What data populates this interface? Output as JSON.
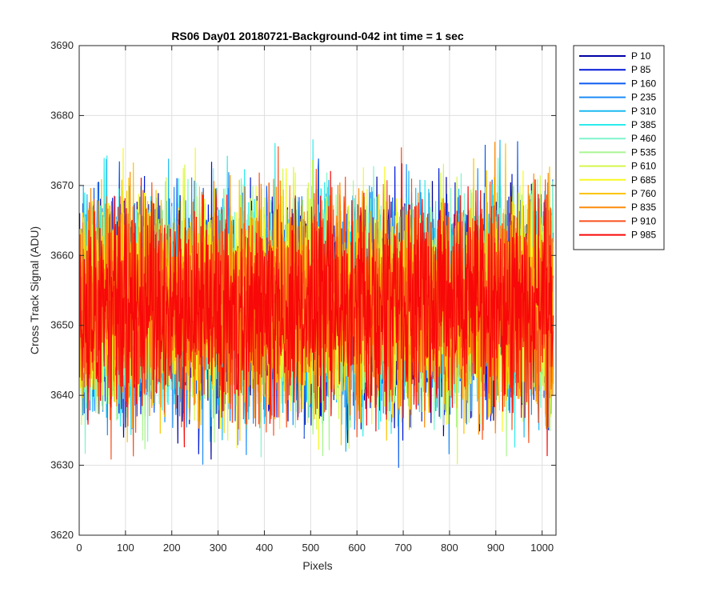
{
  "chart_data": {
    "type": "line",
    "title": "RS06 Day01 20180721-Background-042 int time = 1 sec",
    "xlabel": "Pixels",
    "ylabel": "Cross Track Signal (ADU)",
    "xlim": [
      0,
      1030
    ],
    "ylim": [
      3620,
      3690
    ],
    "x_ticks": [
      "0",
      "100",
      "200",
      "300",
      "400",
      "500",
      "600",
      "700",
      "800",
      "900",
      "1000"
    ],
    "y_ticks": [
      "3620",
      "3630",
      "3640",
      "3650",
      "3660",
      "3670",
      "3680",
      "3690"
    ],
    "grid": true,
    "legend_placement": "outside-right-top",
    "x_range": [
      1,
      1024
    ],
    "series_mean": 3653,
    "series_spread_range": [
      3621,
      3685
    ],
    "series": [
      {
        "name": "P 10",
        "color": "#0000a4"
      },
      {
        "name": "P 85",
        "color": "#0018d8"
      },
      {
        "name": "P 160",
        "color": "#0c5bf0"
      },
      {
        "name": "P 235",
        "color": "#1c8cf8"
      },
      {
        "name": "P 310",
        "color": "#1cbaf0"
      },
      {
        "name": "P 385",
        "color": "#2cecec"
      },
      {
        "name": "P 460",
        "color": "#7ff5cc"
      },
      {
        "name": "P 535",
        "color": "#a8f590"
      },
      {
        "name": "P 610",
        "color": "#d4f84c"
      },
      {
        "name": "P 685",
        "color": "#f8f820"
      },
      {
        "name": "P 760",
        "color": "#fcc400"
      },
      {
        "name": "P 835",
        "color": "#fc8c0c"
      },
      {
        "name": "P 910",
        "color": "#f8501c"
      },
      {
        "name": "P 985",
        "color": "#f80808"
      }
    ]
  }
}
